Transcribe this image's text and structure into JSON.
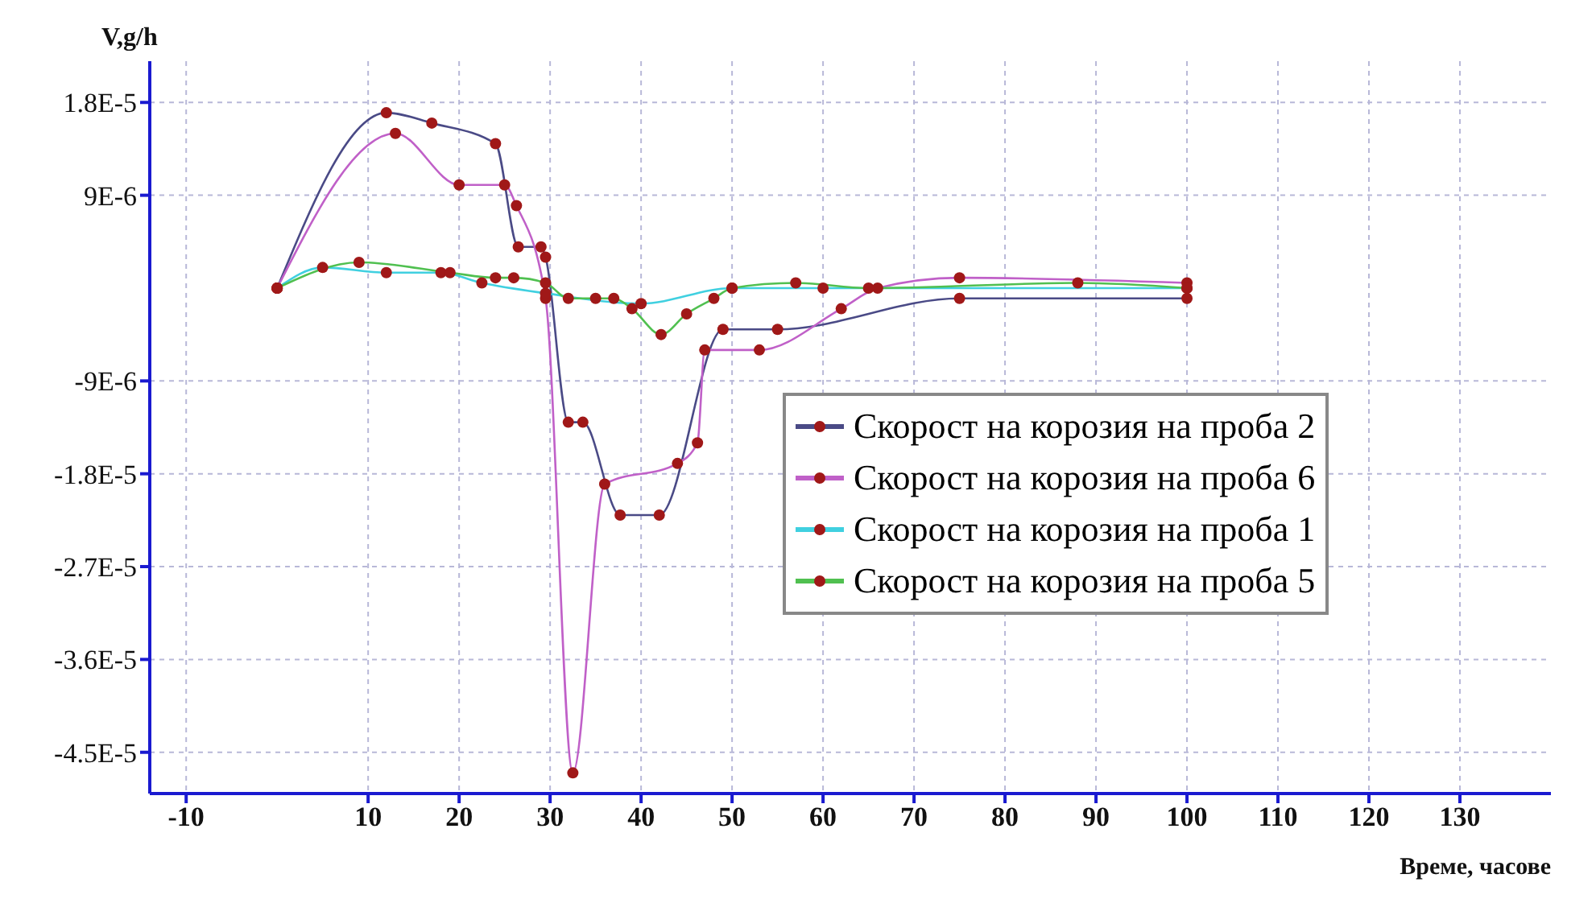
{
  "chart_data": {
    "type": "line",
    "xlabel": "Време, часове",
    "ylabel": "V,g/h",
    "xlim": [
      -14,
      140
    ],
    "ylim": [
      -4.9e-05,
      2.2e-05
    ],
    "xticks": [
      -10,
      10,
      20,
      30,
      40,
      50,
      60,
      70,
      80,
      90,
      100,
      110,
      120,
      130
    ],
    "yticks": [
      {
        "value": -4.5e-05,
        "label": "-4.5E-5"
      },
      {
        "value": -3.6e-05,
        "label": "-3.6E-5"
      },
      {
        "value": -2.7e-05,
        "label": "-2.7E-5"
      },
      {
        "value": -1.8e-05,
        "label": "-1.8E-5"
      },
      {
        "value": -9e-06,
        "label": "-9E-6"
      },
      {
        "value": 9e-06,
        "label": "9E-6"
      },
      {
        "value": 1.8e-05,
        "label": "1.8E-5"
      }
    ],
    "grid": true,
    "legend": "right",
    "marker": "circle",
    "line_style": "solid",
    "series": [
      {
        "name": "Скорост на корозия на проба 2",
        "color": "#4a4a86",
        "x": [
          0,
          12,
          17,
          24,
          26.5,
          29,
          29.5,
          32,
          33.6,
          37.7,
          42,
          49,
          55,
          75,
          100
        ],
        "values": [
          0,
          1.7e-05,
          1.6e-05,
          1.4e-05,
          4e-06,
          4e-06,
          3e-06,
          -1.3e-05,
          -1.3e-05,
          -2.2e-05,
          -2.2e-05,
          -4e-06,
          -4e-06,
          -1e-06,
          -1e-06
        ]
      },
      {
        "name": "Скорост на корозия на проба 6",
        "color": "#c060c8",
        "x": [
          0,
          13,
          20,
          25,
          26.3,
          29.5,
          32.5,
          36,
          44,
          46.2,
          47,
          53,
          62,
          66,
          75,
          100
        ],
        "values": [
          0,
          1.5e-05,
          1e-05,
          1e-05,
          8e-06,
          -1e-06,
          -4.7e-05,
          -1.9e-05,
          -1.7e-05,
          -1.5e-05,
          -6e-06,
          -6e-06,
          -2e-06,
          0,
          1e-06,
          5e-07
        ]
      },
      {
        "name": "Скорост на корозия на проба 1",
        "color": "#40d0e0",
        "x": [
          0,
          5,
          12,
          18,
          22.5,
          29.5,
          40,
          50,
          60,
          100
        ],
        "values": [
          0,
          2e-06,
          1.5e-06,
          1.5e-06,
          5e-07,
          -5e-07,
          -1.5e-06,
          0,
          0,
          0
        ]
      },
      {
        "name": "Скорост на корозия на проба 5",
        "color": "#50c050",
        "x": [
          0,
          9,
          19,
          24,
          26,
          29.5,
          32,
          35,
          37,
          39,
          42.2,
          45,
          48,
          50,
          57,
          65,
          88,
          100
        ],
        "values": [
          0,
          2.5e-06,
          1.5e-06,
          1e-06,
          1e-06,
          5e-07,
          -1e-06,
          -1e-06,
          -1e-06,
          -2e-06,
          -4.5e-06,
          -2.5e-06,
          -1e-06,
          0,
          5e-07,
          0,
          5e-07,
          0
        ]
      }
    ]
  }
}
